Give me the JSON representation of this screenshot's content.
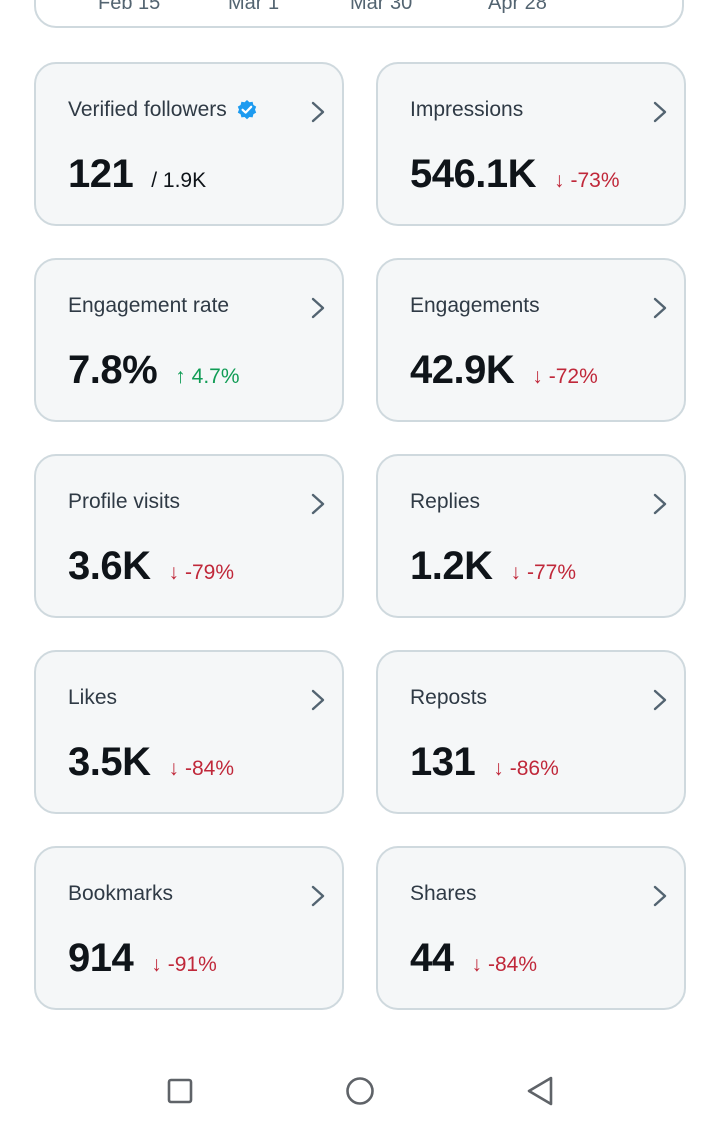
{
  "chart_axis": {
    "labels": [
      "Feb 15",
      "Mar 1",
      "Mar 30",
      "Apr 28"
    ]
  },
  "metrics": [
    {
      "title": "Verified followers",
      "value": "121",
      "sub": "/ 1.9K",
      "has_verified_badge": true
    },
    {
      "title": "Impressions",
      "value": "546.1K",
      "delta": "-73%",
      "delta_arrow": "↓",
      "direction": "down"
    },
    {
      "title": "Engagement rate",
      "value": "7.8%",
      "delta": "4.7%",
      "delta_arrow": "↑",
      "direction": "up"
    },
    {
      "title": "Engagements",
      "value": "42.9K",
      "delta": "-72%",
      "delta_arrow": "↓",
      "direction": "down"
    },
    {
      "title": "Profile visits",
      "value": "3.6K",
      "delta": "-79%",
      "delta_arrow": "↓",
      "direction": "down"
    },
    {
      "title": "Replies",
      "value": "1.2K",
      "delta": "-77%",
      "delta_arrow": "↓",
      "direction": "down"
    },
    {
      "title": "Likes",
      "value": "3.5K",
      "delta": "-84%",
      "delta_arrow": "↓",
      "direction": "down"
    },
    {
      "title": "Reposts",
      "value": "131",
      "delta": "-86%",
      "delta_arrow": "↓",
      "direction": "down"
    },
    {
      "title": "Bookmarks",
      "value": "914",
      "delta": "-91%",
      "delta_arrow": "↓",
      "direction": "down"
    },
    {
      "title": "Shares",
      "value": "44",
      "delta": "-84%",
      "delta_arrow": "↓",
      "direction": "down"
    }
  ],
  "colors": {
    "up": "#109c55",
    "down": "#c0283a",
    "verified": "#1d9bf0"
  },
  "icons": {
    "card_chevron": "chevron-right-icon",
    "verified": "verified-badge-icon",
    "nav_recents": "square-icon",
    "nav_home": "circle-icon",
    "nav_back": "triangle-back-icon"
  }
}
